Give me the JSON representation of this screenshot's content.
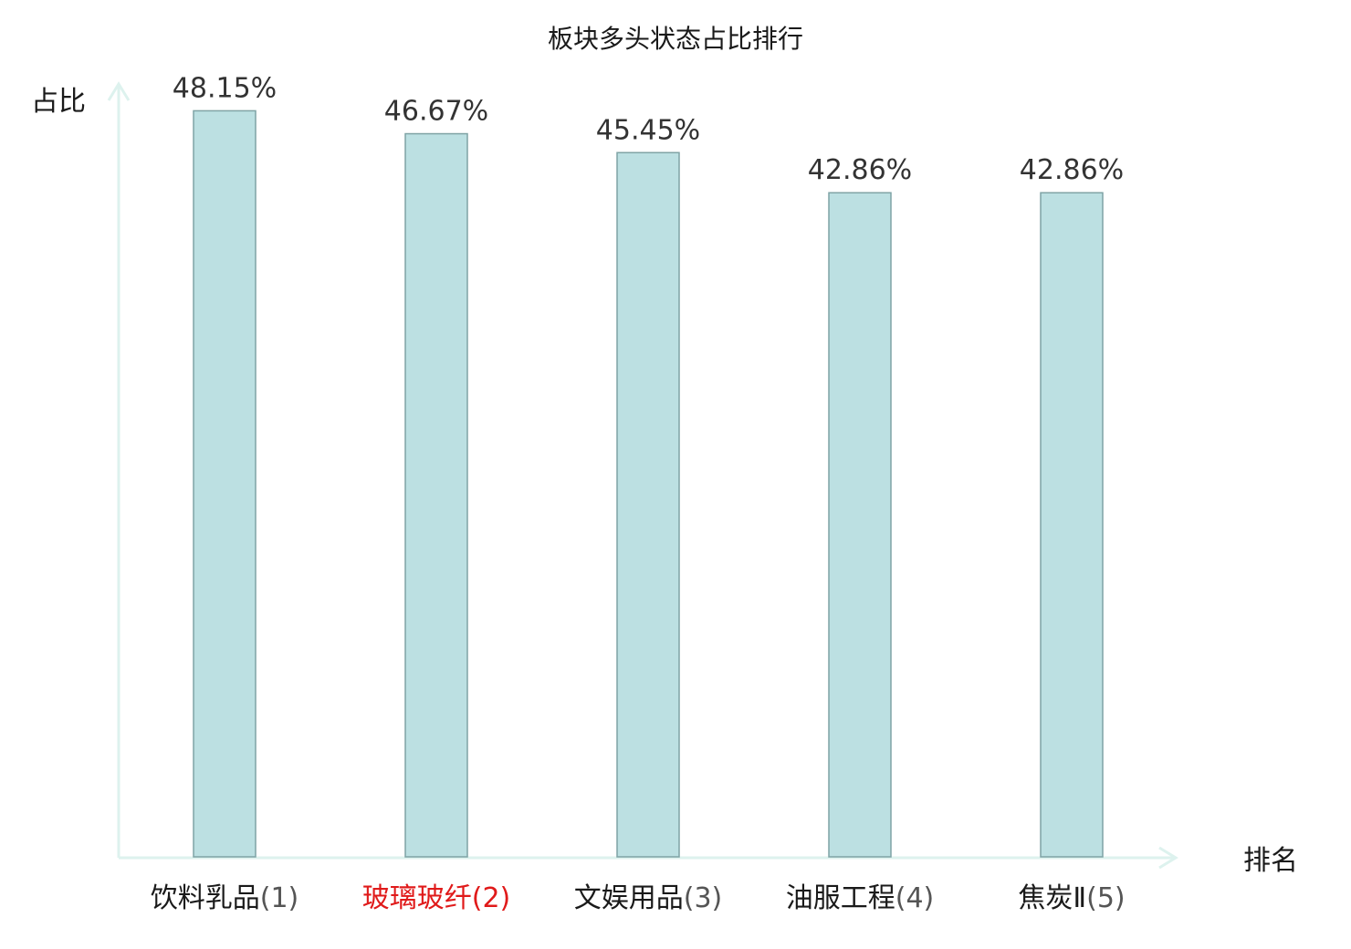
{
  "chart_data": {
    "type": "bar",
    "title": "板块多头状态占比排行",
    "ylabel": "占比",
    "xlabel": "排名",
    "categories": [
      "饮料乳品",
      "玻璃玻纤",
      "文娱用品",
      "油服工程",
      "焦炭Ⅱ"
    ],
    "ranks": [
      "(1)",
      "(2)",
      "(3)",
      "(4)",
      "(5)"
    ],
    "values": [
      48.15,
      46.67,
      45.45,
      42.86,
      42.86
    ],
    "value_labels": [
      "48.15%",
      "46.67%",
      "45.45%",
      "42.86%",
      "42.86%"
    ],
    "highlight_index": 1,
    "ylim": [
      0,
      50
    ],
    "grid": false,
    "colors": {
      "bar_fill": "#bce0e2",
      "bar_stroke": "#7fa3a5",
      "axis": "#ddf2ee",
      "text": "#1a1a1a",
      "rank_text": "#555555",
      "highlight": "#e01a1a"
    }
  }
}
